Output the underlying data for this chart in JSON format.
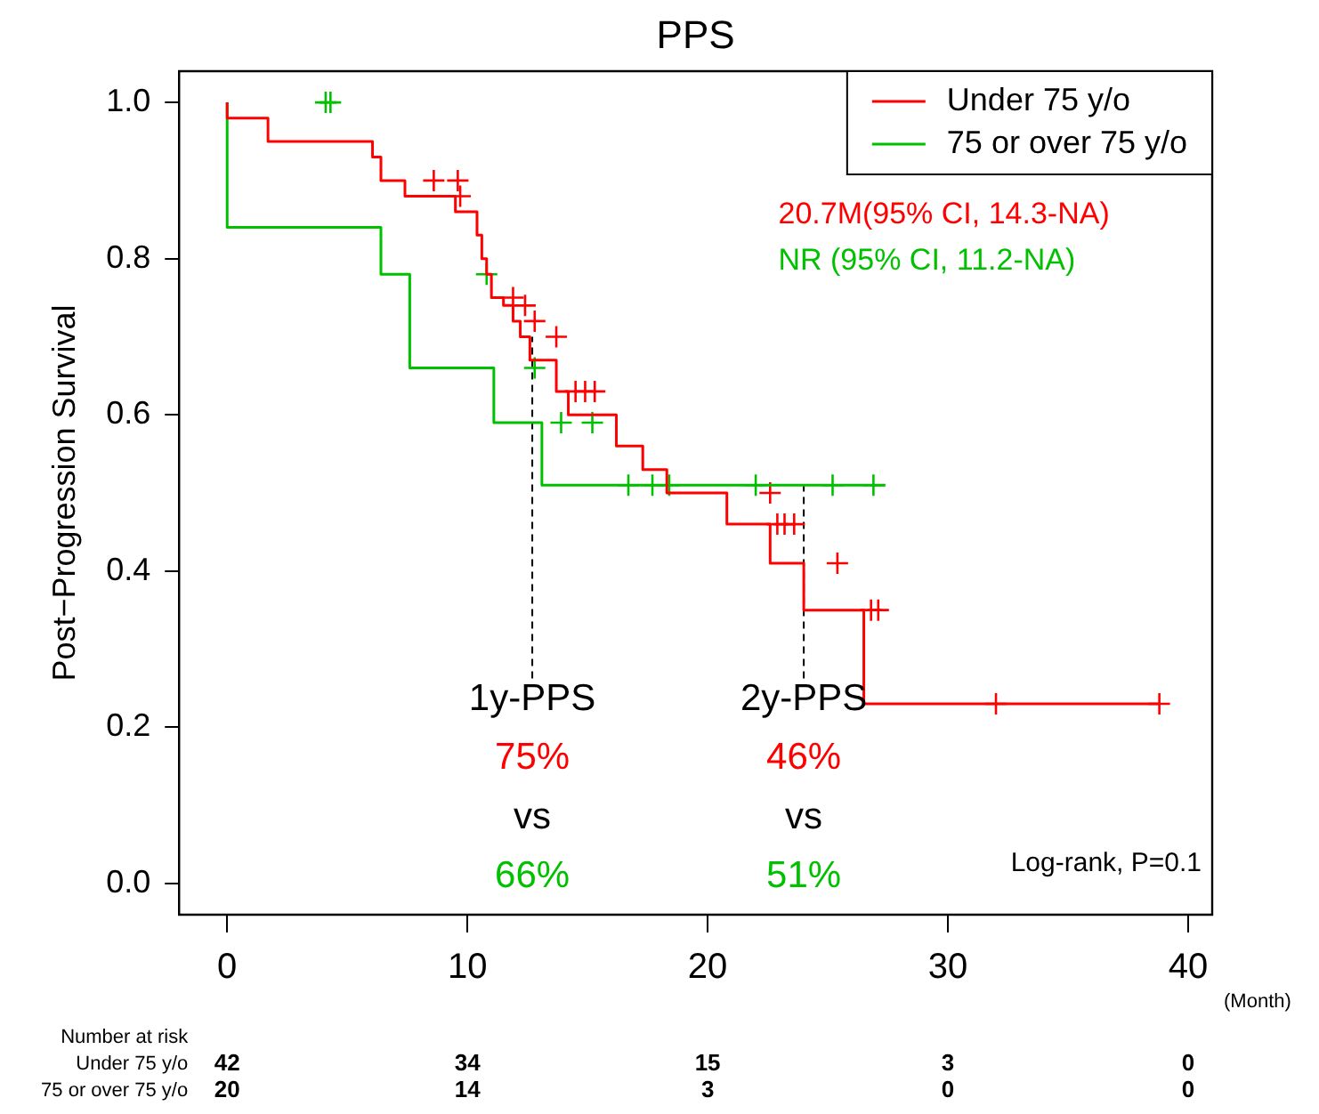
{
  "chart_data": {
    "type": "step",
    "title": "PPS",
    "ylabel": "Post−Progression Survival",
    "xlim": [
      -2,
      41
    ],
    "xticks": [
      0,
      10,
      20,
      30,
      40
    ],
    "ylim": [
      -0.04,
      1.04
    ],
    "yticks": [
      {
        "value": 0,
        "label": "0.0"
      },
      {
        "value": 0.2,
        "label": "0.2"
      },
      {
        "value": 0.4,
        "label": "0.4"
      },
      {
        "value": 0.6,
        "label": "0.6"
      },
      {
        "value": 0.8,
        "label": "0.8"
      },
      {
        "value": 1,
        "label": "1.0"
      }
    ],
    "grid": false,
    "legend": "top right",
    "series": [
      {
        "name": "Under 75 y/o",
        "color": "#ff0000",
        "x": [
          0,
          1.7,
          6.05,
          6.4,
          7.4,
          9.5,
          10.4,
          10.6,
          10.8,
          11.0,
          11.5,
          11.9,
          12.2,
          12.6,
          13.7,
          14.2,
          16.2,
          17.3,
          18.3,
          20.8,
          22.6,
          24.0,
          26.5,
          31.2,
          38.8
        ],
        "values": [
          1,
          0.98,
          0.95,
          0.93,
          0.9,
          0.88,
          0.86,
          0.83,
          0.8,
          0.78,
          0.75,
          0.74,
          0.72,
          0.7,
          0.67,
          0.63,
          0.6,
          0.56,
          0.53,
          0.5,
          0.46,
          0.41,
          0.35,
          0.23,
          0.23
        ]
      },
      {
        "name": "75 or over 75 y/o",
        "color": "#00c000",
        "x": [
          0,
          6.4,
          7.6,
          11.1,
          13.1,
          15.3,
          27.4
        ],
        "values": [
          1,
          0.84,
          0.78,
          0.66,
          0.59,
          0.51,
          0.51
        ]
      },
      {
        "color": "#ff0000",
        "type": "scatter",
        "marker": "cross",
        "x": [
          8.6,
          9.6,
          9.7,
          11.9,
          12.4,
          12.8,
          13.7,
          14.5,
          14.9,
          15.3,
          22.6,
          22.9,
          23.2,
          23.6,
          25.4,
          26.8,
          27.1,
          32.0,
          38.8
        ],
        "values": [
          0.9,
          0.9,
          0.88,
          0.75,
          0.74,
          0.72,
          0.7,
          0.63,
          0.63,
          0.63,
          0.5,
          0.46,
          0.46,
          0.46,
          0.41,
          0.35,
          0.35,
          0.23,
          0.23
        ]
      },
      {
        "color": "#00c000",
        "type": "scatter",
        "marker": "cross",
        "x": [
          4.1,
          4.3,
          10.8,
          12.8,
          13.9,
          15.2,
          16.7,
          17.7,
          18.4,
          22.0,
          25.2,
          26.9
        ],
        "values": [
          1,
          1,
          0.78,
          0.66,
          0.59,
          0.59,
          0.51,
          0.51,
          0.51,
          0.51,
          0.51,
          0.51
        ]
      }
    ],
    "ref_lines": [
      {
        "axis": "x",
        "value": 12.7,
        "line_style": "dashed",
        "color": "#000000"
      },
      {
        "axis": "x",
        "value": 24,
        "line_style": "dashed",
        "color": "#000000"
      }
    ],
    "annotations": [
      "20.7M(95% CI, 14.3-NA)",
      "NR (95% CI, 11.2-NA)",
      "1y-PPS",
      "75%",
      "vs",
      "66%",
      "2y-PPS",
      "46%",
      "vs",
      "51%",
      "Log-rank, P=0.1",
      "(Month)",
      "Number at risk",
      "Under 75 y/o",
      "75 or over 75 y/o",
      "42",
      "34",
      "15",
      "3",
      "0",
      "20",
      "14",
      "3",
      "0",
      "0"
    ]
  }
}
